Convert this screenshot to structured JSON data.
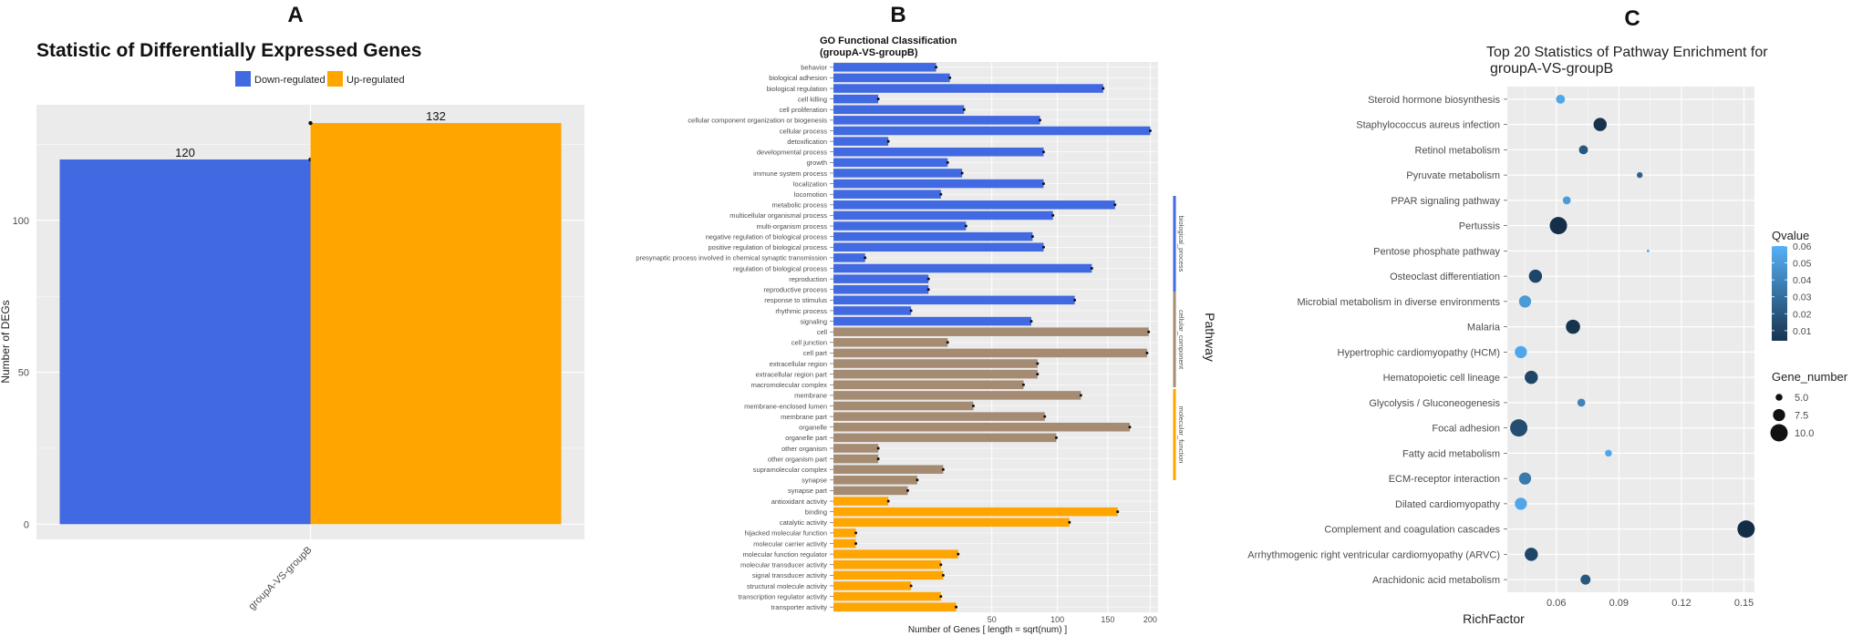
{
  "chart_data": [
    {
      "panel": "A",
      "type": "bar",
      "title": "Statistic of Differentially Expressed Genes",
      "ylabel": "Number of DEGs",
      "xlabel": "",
      "categories": [
        "groupA-VS-groupB"
      ],
      "series": [
        {
          "name": "Down-regulated",
          "color": "#4169E1",
          "values": [
            120
          ]
        },
        {
          "name": "Up-regulated",
          "color": "#FFA500",
          "values": [
            132
          ]
        }
      ],
      "ylim": [
        -5,
        138
      ],
      "yticks": [
        0,
        50,
        100
      ],
      "legend": [
        "Down-regulated",
        "Up-regulated"
      ]
    },
    {
      "panel": "B",
      "type": "bar",
      "orientation": "horizontal",
      "title": "GO Functional Classification",
      "subtitle": "(groupA-VS-groupB)",
      "xlabel": "Number of Genes [ length = sqrt(num) ]",
      "legend_title": "Pathway",
      "xticks": [
        50,
        100,
        150,
        200
      ],
      "xlim": [
        0,
        210
      ],
      "groups": [
        {
          "name": "biological_process",
          "color": "#4169E1"
        },
        {
          "name": "cellular_component",
          "color": "#A58B72"
        },
        {
          "name": "molecular_function",
          "color": "#FFA500"
        }
      ],
      "categories": [
        "behavior",
        "biological adhesion",
        "biological regulation",
        "cell killing",
        "cell proliferation",
        "cellular component organization or biogenesis",
        "cellular process",
        "detoxification",
        "developmental process",
        "growth",
        "immune system process",
        "localization",
        "locomotion",
        "metabolic process",
        "multicellular organismal process",
        "multi-organism process",
        "negative regulation of biological process",
        "positive regulation of biological process",
        "presynaptic process involved in chemical synaptic transmission",
        "regulation of biological process",
        "reproduction",
        "reproductive process",
        "response to stimulus",
        "rhythmic process",
        "signaling",
        "cell",
        "cell junction",
        "cell part",
        "extracellular region",
        "extracellular region part",
        "macromolecular complex",
        "membrane",
        "membrane-enclosed lumen",
        "membrane part",
        "organelle",
        "organelle part",
        "other organism",
        "other organism part",
        "supramolecular complex",
        "synapse",
        "synapse part",
        "antioxidant activity",
        "binding",
        "catalytic activity",
        "hijacked molecular function",
        "molecular carrier activity",
        "molecular function regulator",
        "molecular transducer activity",
        "signal transducer activity",
        "structural molecule activity",
        "transcription regulator activity",
        "transporter activity"
      ],
      "values": [
        21,
        27,
        145,
        4,
        34,
        85,
        200,
        6,
        88,
        26,
        33,
        88,
        23,
        158,
        96,
        35,
        79,
        88,
        2,
        133,
        18,
        18,
        116,
        12,
        78,
        198,
        26,
        196,
        83,
        83,
        72,
        122,
        39,
        89,
        175,
        99,
        4,
        4,
        24,
        14,
        11,
        6,
        161,
        111,
        1,
        1,
        31,
        23,
        24,
        12,
        23,
        30
      ],
      "group_index": [
        0,
        0,
        0,
        0,
        0,
        0,
        0,
        0,
        0,
        0,
        0,
        0,
        0,
        0,
        0,
        0,
        0,
        0,
        0,
        0,
        0,
        0,
        0,
        0,
        0,
        1,
        1,
        1,
        1,
        1,
        1,
        1,
        1,
        1,
        1,
        1,
        1,
        1,
        1,
        1,
        1,
        2,
        2,
        2,
        2,
        2,
        2,
        2,
        2,
        2,
        2,
        2
      ]
    },
    {
      "panel": "C",
      "type": "scatter",
      "title": "Top 20 Statistics of Pathway Enrichment for",
      "subtitle": "groupA-VS-groupB",
      "xlabel": "RichFactor",
      "xticks": [
        0.06,
        0.09,
        0.12,
        0.15
      ],
      "xlim": [
        0.0365,
        0.155
      ],
      "qvalue_ticks": [
        0.01,
        0.02,
        0.03,
        0.04,
        0.05,
        0.06
      ],
      "qvalue_title": "Qvalue",
      "size_title": "Gene_number",
      "size_legend": [
        {
          "label": "5.0",
          "value": 5
        },
        {
          "label": "7.5",
          "value": 7.5
        },
        {
          "label": "10.0",
          "value": 10
        }
      ],
      "points": [
        {
          "pathway": "Steroid hormone biosynthesis",
          "richfactor": 0.062,
          "qvalue": 0.055,
          "gene_number": 6
        },
        {
          "pathway": "Staphylococcus aureus infection",
          "richfactor": 0.081,
          "qvalue": 0.003,
          "gene_number": 8
        },
        {
          "pathway": "Retinol metabolism",
          "richfactor": 0.073,
          "qvalue": 0.02,
          "gene_number": 6
        },
        {
          "pathway": "Pyruvate metabolism",
          "richfactor": 0.1,
          "qvalue": 0.025,
          "gene_number": 4.5
        },
        {
          "pathway": "PPAR signaling pathway",
          "richfactor": 0.065,
          "qvalue": 0.05,
          "gene_number": 5.5
        },
        {
          "pathway": "Pertussis",
          "richfactor": 0.061,
          "qvalue": 0.002,
          "gene_number": 10
        },
        {
          "pathway": "Pentose phosphate pathway",
          "richfactor": 0.104,
          "qvalue": 0.06,
          "gene_number": 3
        },
        {
          "pathway": "Osteoclast differentiation",
          "richfactor": 0.05,
          "qvalue": 0.012,
          "gene_number": 8
        },
        {
          "pathway": "Microbial metabolism in diverse environments",
          "richfactor": 0.045,
          "qvalue": 0.05,
          "gene_number": 7.5
        },
        {
          "pathway": "Malaria",
          "richfactor": 0.068,
          "qvalue": 0.004,
          "gene_number": 8.5
        },
        {
          "pathway": "Hypertrophic cardiomyopathy (HCM)",
          "richfactor": 0.043,
          "qvalue": 0.055,
          "gene_number": 7.5
        },
        {
          "pathway": "Hematopoietic cell lineage",
          "richfactor": 0.048,
          "qvalue": 0.012,
          "gene_number": 8
        },
        {
          "pathway": "Glycolysis / Gluconeogenesis",
          "richfactor": 0.072,
          "qvalue": 0.04,
          "gene_number": 5.5
        },
        {
          "pathway": "Focal adhesion",
          "richfactor": 0.042,
          "qvalue": 0.015,
          "gene_number": 10
        },
        {
          "pathway": "Fatty acid metabolism",
          "richfactor": 0.085,
          "qvalue": 0.055,
          "gene_number": 5
        },
        {
          "pathway": "ECM-receptor interaction",
          "richfactor": 0.045,
          "qvalue": 0.035,
          "gene_number": 7.5
        },
        {
          "pathway": "Dilated cardiomyopathy",
          "richfactor": 0.043,
          "qvalue": 0.055,
          "gene_number": 7.5
        },
        {
          "pathway": "Complement and coagulation cascades",
          "richfactor": 0.151,
          "qvalue": 0.001,
          "gene_number": 10
        },
        {
          "pathway": "Arrhythmogenic right ventricular cardiomyopathy (ARVC)",
          "richfactor": 0.048,
          "qvalue": 0.012,
          "gene_number": 8
        },
        {
          "pathway": "Arachidonic acid metabolism",
          "richfactor": 0.074,
          "qvalue": 0.02,
          "gene_number": 6.5
        }
      ],
      "pathway_order_top_to_bottom": [
        "Steroid hormone biosynthesis",
        "Staphylococcus aureus infection",
        "Retinol metabolism",
        "Pyruvate metabolism",
        "PPAR signaling pathway",
        "Pertussis",
        "Pentose phosphate pathway",
        "Osteoclast differentiation",
        "Microbial metabolism in diverse environments",
        "Malaria",
        "Hypertrophic cardiomyopathy (HCM)",
        "Hematopoietic cell lineage",
        "Glycolysis / Gluconeogenesis",
        "Focal adhesion",
        "Fatty acid metabolism",
        "ECM-receptor interaction",
        "Dilated cardiomyopathy",
        "Complement and coagulation cascades",
        "Arrhythmogenic right ventricular cardiomyopathy (ARVC)",
        "Arachidonic acid metabolism"
      ]
    }
  ],
  "colors": {
    "panel_bg": "#EBEBEB",
    "grid": "#FFFFFF",
    "down": "#4169E1",
    "up": "#FFA500",
    "cc": "#A58B72",
    "q_low": "#132B43",
    "q_high": "#56B1F7",
    "text": "#222222",
    "tick": "#4D4D4D"
  }
}
